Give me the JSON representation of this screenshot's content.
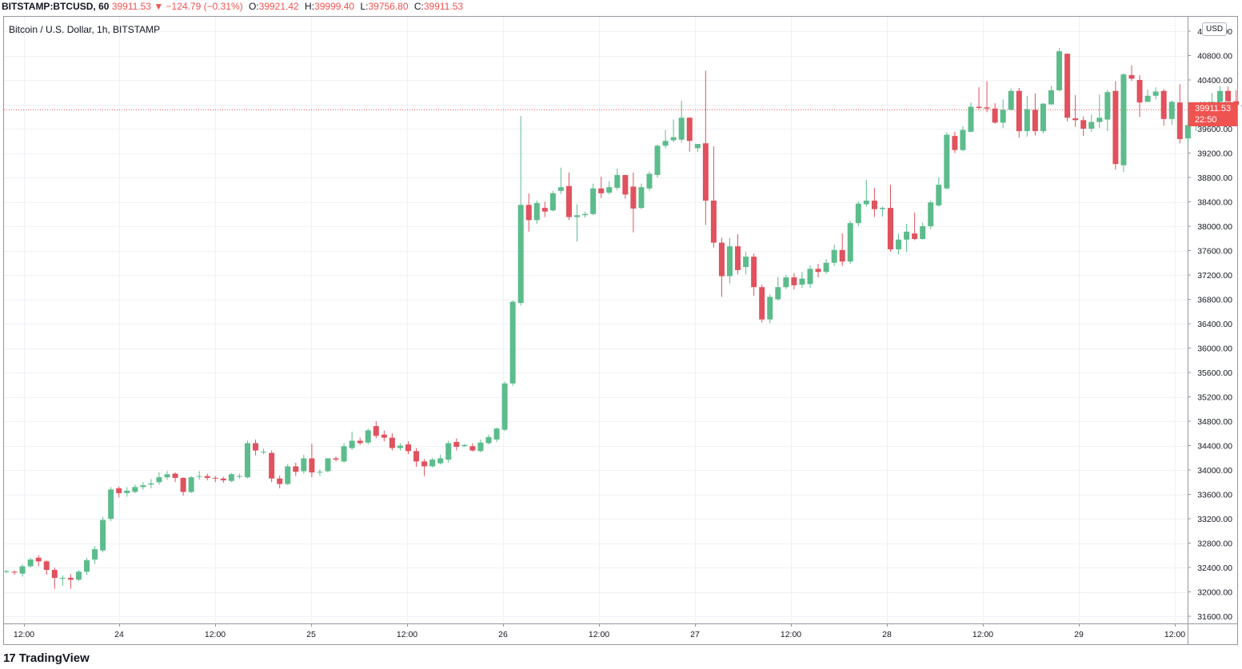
{
  "header": {
    "symbol": "BITSTAMP:BTCUSD, 60",
    "last": "39911.53",
    "arrow": "▼",
    "change": "−124.79 (−0.31%)",
    "o_label": "O:",
    "o_value": "39921.42",
    "h_label": "H:",
    "h_value": "39999.40",
    "l_label": "L:",
    "l_value": "39756.80",
    "c_label": "C:",
    "c_value": "39911.53"
  },
  "subtitle": "Bitcoin / U.S. Dollar, 1h, BITSTAMP",
  "currency_badge": "USD",
  "price_tag": {
    "price": "39911.53",
    "countdown": "22:50"
  },
  "footer": {
    "logo": "17",
    "brand": "TradingView"
  },
  "colors": {
    "up": "#26a69a",
    "up_fill": "#5cbc8c",
    "down": "#ef5350",
    "down_fill": "#e0525e",
    "grid": "#eef1f6"
  },
  "chart_data": {
    "type": "candlestick",
    "y_ticks": [
      "31600.00",
      "32000.00",
      "32400.00",
      "32800.00",
      "33200.00",
      "33600.00",
      "34000.00",
      "34400.00",
      "34800.00",
      "35200.00",
      "35600.00",
      "36000.00",
      "36400.00",
      "36800.00",
      "37200.00",
      "37600.00",
      "38000.00",
      "38400.00",
      "38800.00",
      "39200.00",
      "39600.00",
      "40000.00",
      "40400.00",
      "40800.00",
      "41200.00"
    ],
    "ylim": [
      31500,
      41400
    ],
    "x_ticks": [
      "12:00",
      "24",
      "12:00",
      "25",
      "12:00",
      "26",
      "12:00",
      "27",
      "12:00",
      "28",
      "12:00",
      "29",
      "12:00"
    ],
    "last_price": 39911.53,
    "candles": [
      [
        32330,
        32340,
        32310,
        32360
      ],
      [
        32330,
        32320,
        32280,
        32350
      ],
      [
        32300,
        32420,
        32250,
        32450
      ],
      [
        32420,
        32530,
        32400,
        32560
      ],
      [
        32560,
        32500,
        32420,
        32600
      ],
      [
        32500,
        32360,
        32280,
        32520
      ],
      [
        32360,
        32230,
        32050,
        32400
      ],
      [
        32230,
        32230,
        32100,
        32270
      ],
      [
        32230,
        32200,
        32050,
        32290
      ],
      [
        32200,
        32330,
        32180,
        32360
      ],
      [
        32330,
        32520,
        32280,
        32560
      ],
      [
        32530,
        32700,
        32460,
        32750
      ],
      [
        32680,
        33180,
        32650,
        33230
      ],
      [
        33200,
        33680,
        33160,
        33720
      ],
      [
        33700,
        33620,
        33550,
        33730
      ],
      [
        33620,
        33660,
        33560,
        33720
      ],
      [
        33640,
        33720,
        33620,
        33760
      ],
      [
        33720,
        33750,
        33680,
        33800
      ],
      [
        33760,
        33780,
        33700,
        33850
      ],
      [
        33800,
        33880,
        33760,
        33960
      ],
      [
        33880,
        33930,
        33840,
        33980
      ],
      [
        33940,
        33870,
        33800,
        33960
      ],
      [
        33870,
        33640,
        33580,
        33880
      ],
      [
        33640,
        33880,
        33620,
        33900
      ],
      [
        33900,
        33900,
        33840,
        33980
      ],
      [
        33900,
        33870,
        33830,
        33940
      ],
      [
        33870,
        33860,
        33800,
        33900
      ],
      [
        33860,
        33830,
        33790,
        33890
      ],
      [
        33820,
        33930,
        33800,
        33950
      ],
      [
        33900,
        33900,
        33860,
        33940
      ],
      [
        33880,
        34440,
        33860,
        34480
      ],
      [
        34440,
        34320,
        34240,
        34500
      ],
      [
        34300,
        34300,
        34260,
        34350
      ],
      [
        34280,
        33860,
        33800,
        34320
      ],
      [
        33860,
        33770,
        33700,
        33910
      ],
      [
        33770,
        34060,
        33750,
        34100
      ],
      [
        34060,
        33970,
        33900,
        34120
      ],
      [
        33980,
        34190,
        33940,
        34250
      ],
      [
        34190,
        33960,
        33880,
        34430
      ],
      [
        33960,
        33970,
        33900,
        34010
      ],
      [
        33980,
        34190,
        33960,
        34200
      ],
      [
        34190,
        34170,
        34140,
        34220
      ],
      [
        34140,
        34390,
        34120,
        34440
      ],
      [
        34360,
        34480,
        34330,
        34630
      ],
      [
        34480,
        34440,
        34410,
        34530
      ],
      [
        34450,
        34650,
        34420,
        34680
      ],
      [
        34720,
        34560,
        34520,
        34800
      ],
      [
        34580,
        34530,
        34470,
        34650
      ],
      [
        34530,
        34360,
        34320,
        34600
      ],
      [
        34360,
        34400,
        34320,
        34440
      ],
      [
        34420,
        34310,
        34260,
        34470
      ],
      [
        34310,
        34140,
        34050,
        34360
      ],
      [
        34140,
        34060,
        33900,
        34180
      ],
      [
        34060,
        34170,
        34040,
        34200
      ],
      [
        34110,
        34190,
        34090,
        34250
      ],
      [
        34170,
        34440,
        34120,
        34480
      ],
      [
        34460,
        34380,
        34320,
        34520
      ],
      [
        34390,
        34410,
        34380,
        34430
      ],
      [
        34390,
        34320,
        34300,
        34440
      ],
      [
        34310,
        34450,
        34290,
        34500
      ],
      [
        34440,
        34540,
        34420,
        34580
      ],
      [
        34500,
        34680,
        34460,
        34700
      ],
      [
        34660,
        35420,
        34640,
        35450
      ],
      [
        35420,
        36760,
        35380,
        36780
      ],
      [
        36740,
        38350,
        36700,
        39810
      ],
      [
        38350,
        38100,
        37910,
        38540
      ],
      [
        38100,
        38380,
        38040,
        38420
      ],
      [
        38300,
        38240,
        38150,
        38400
      ],
      [
        38260,
        38540,
        38240,
        38580
      ],
      [
        38580,
        38640,
        38530,
        38960
      ],
      [
        38660,
        38150,
        38100,
        38880
      ],
      [
        38150,
        38180,
        37750,
        38360
      ],
      [
        38180,
        38200,
        38140,
        38240
      ],
      [
        38200,
        38620,
        38180,
        38700
      ],
      [
        38620,
        38540,
        38460,
        38810
      ],
      [
        38550,
        38640,
        38520,
        38740
      ],
      [
        38630,
        38840,
        38590,
        38950
      ],
      [
        38840,
        38520,
        38450,
        38840
      ],
      [
        38650,
        38290,
        37900,
        38880
      ],
      [
        38300,
        38640,
        38280,
        38700
      ],
      [
        38620,
        38860,
        38580,
        38900
      ],
      [
        38840,
        39320,
        38800,
        39340
      ],
      [
        39320,
        39400,
        39280,
        39580
      ],
      [
        39410,
        39460,
        39380,
        39750
      ],
      [
        39420,
        39780,
        39370,
        40060
      ],
      [
        39780,
        39400,
        39220,
        39790
      ],
      [
        39280,
        39350,
        39220,
        39340
      ],
      [
        39360,
        38420,
        38020,
        40550
      ],
      [
        38420,
        37730,
        37650,
        39310
      ],
      [
        37730,
        37180,
        36840,
        37810
      ],
      [
        37180,
        37670,
        37060,
        37810
      ],
      [
        37670,
        37280,
        37210,
        37870
      ],
      [
        37330,
        37500,
        37210,
        37580
      ],
      [
        37500,
        37000,
        36860,
        37550
      ],
      [
        37000,
        36470,
        36420,
        37040
      ],
      [
        36470,
        36840,
        36410,
        36880
      ],
      [
        36800,
        37000,
        36780,
        37170
      ],
      [
        37000,
        37160,
        36970,
        37200
      ],
      [
        37160,
        37030,
        36960,
        37230
      ],
      [
        37040,
        37140,
        36990,
        37250
      ],
      [
        37050,
        37300,
        36990,
        37360
      ],
      [
        37300,
        37250,
        37160,
        37380
      ],
      [
        37250,
        37400,
        37220,
        37460
      ],
      [
        37400,
        37610,
        37350,
        37700
      ],
      [
        37610,
        37420,
        37350,
        37880
      ],
      [
        37420,
        38050,
        37380,
        38090
      ],
      [
        38050,
        38370,
        38000,
        38410
      ],
      [
        38360,
        38420,
        38320,
        38760
      ],
      [
        38420,
        38280,
        38150,
        38630
      ],
      [
        38280,
        38300,
        38160,
        38320
      ],
      [
        38300,
        37620,
        37580,
        38680
      ],
      [
        37620,
        37780,
        37540,
        37880
      ],
      [
        37780,
        37910,
        37580,
        38040
      ],
      [
        37880,
        37790,
        37770,
        38220
      ],
      [
        37790,
        38000,
        37780,
        38060
      ],
      [
        38000,
        38390,
        37950,
        38420
      ],
      [
        38340,
        38680,
        38320,
        38800
      ],
      [
        38620,
        39500,
        38600,
        39540
      ],
      [
        39480,
        39250,
        39200,
        39550
      ],
      [
        39250,
        39580,
        39230,
        39640
      ],
      [
        39550,
        39960,
        39540,
        40030
      ],
      [
        39960,
        39940,
        39920,
        40280
      ],
      [
        39950,
        39930,
        39870,
        40380
      ],
      [
        39930,
        39700,
        39680,
        40020
      ],
      [
        39700,
        39910,
        39610,
        40080
      ],
      [
        39910,
        40220,
        39900,
        40260
      ],
      [
        40220,
        39560,
        39450,
        40270
      ],
      [
        39560,
        39920,
        39470,
        40140
      ],
      [
        39910,
        39560,
        39490,
        40180
      ],
      [
        39560,
        40010,
        39520,
        40020
      ],
      [
        40000,
        40230,
        39990,
        40300
      ],
      [
        40230,
        40870,
        40210,
        40920
      ],
      [
        40830,
        39780,
        39720,
        40830
      ],
      [
        39770,
        39740,
        39630,
        40150
      ],
      [
        39740,
        39600,
        39480,
        39800
      ],
      [
        39600,
        39710,
        39550,
        39830
      ],
      [
        39710,
        39780,
        39610,
        40160
      ],
      [
        39750,
        40200,
        39560,
        40240
      ],
      [
        40220,
        39020,
        38930,
        40380
      ],
      [
        39000,
        40490,
        38890,
        40510
      ],
      [
        40480,
        40420,
        40380,
        40640
      ],
      [
        40400,
        40030,
        39790,
        40480
      ],
      [
        40040,
        40140,
        40040,
        40240
      ],
      [
        40140,
        40210,
        40080,
        40280
      ],
      [
        40220,
        39760,
        39650,
        40250
      ],
      [
        39760,
        40040,
        39660,
        40060
      ],
      [
        40030,
        39430,
        39360,
        40330
      ],
      [
        39440,
        39660,
        39310,
        39670
      ],
      [
        39660,
        39690,
        39560,
        39880
      ],
      [
        39690,
        39770,
        39620,
        39870
      ],
      [
        39640,
        40040,
        39630,
        40180
      ],
      [
        40040,
        40220,
        39980,
        40300
      ],
      [
        40220,
        40050,
        40000,
        40290
      ],
      [
        40050,
        39990,
        39940,
        40230
      ],
      [
        39960,
        39990,
        39860,
        40100
      ]
    ]
  }
}
